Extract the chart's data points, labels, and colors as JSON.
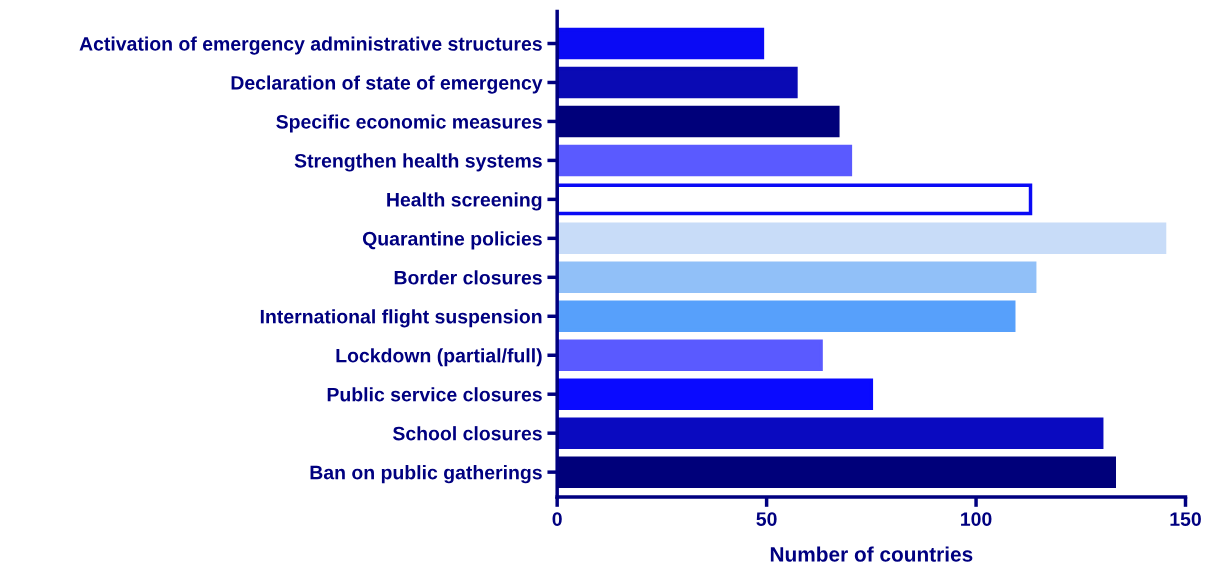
{
  "chart_data": {
    "type": "bar",
    "orientation": "horizontal",
    "xlabel": "Number of countries",
    "categories": [
      "Activation of emergency administrative structures",
      "Declaration of state of emergency",
      "Specific economic measures",
      "Strengthen health systems",
      "Health screening",
      "Quarantine policies",
      "Border closures",
      "International flight suspension",
      "Lockdown (partial/full)",
      "Public service closures",
      "School closures",
      "Ban on public gatherings"
    ],
    "values": [
      49,
      57,
      67,
      70,
      113,
      145,
      114,
      109,
      63,
      75,
      130,
      133
    ],
    "colors": [
      "#0a0af5",
      "#0a0ab4",
      "#00007a",
      "#5a5aff",
      "#ffffff",
      "#c8dcf8",
      "#91c0f8",
      "#57a0fb",
      "#5a5aff",
      "#0a0aff",
      "#0a0ac0",
      "#00007a"
    ],
    "xlim": [
      0,
      150
    ],
    "xticks": [
      0,
      50,
      100,
      150
    ],
    "grid": false,
    "legend": false
  }
}
